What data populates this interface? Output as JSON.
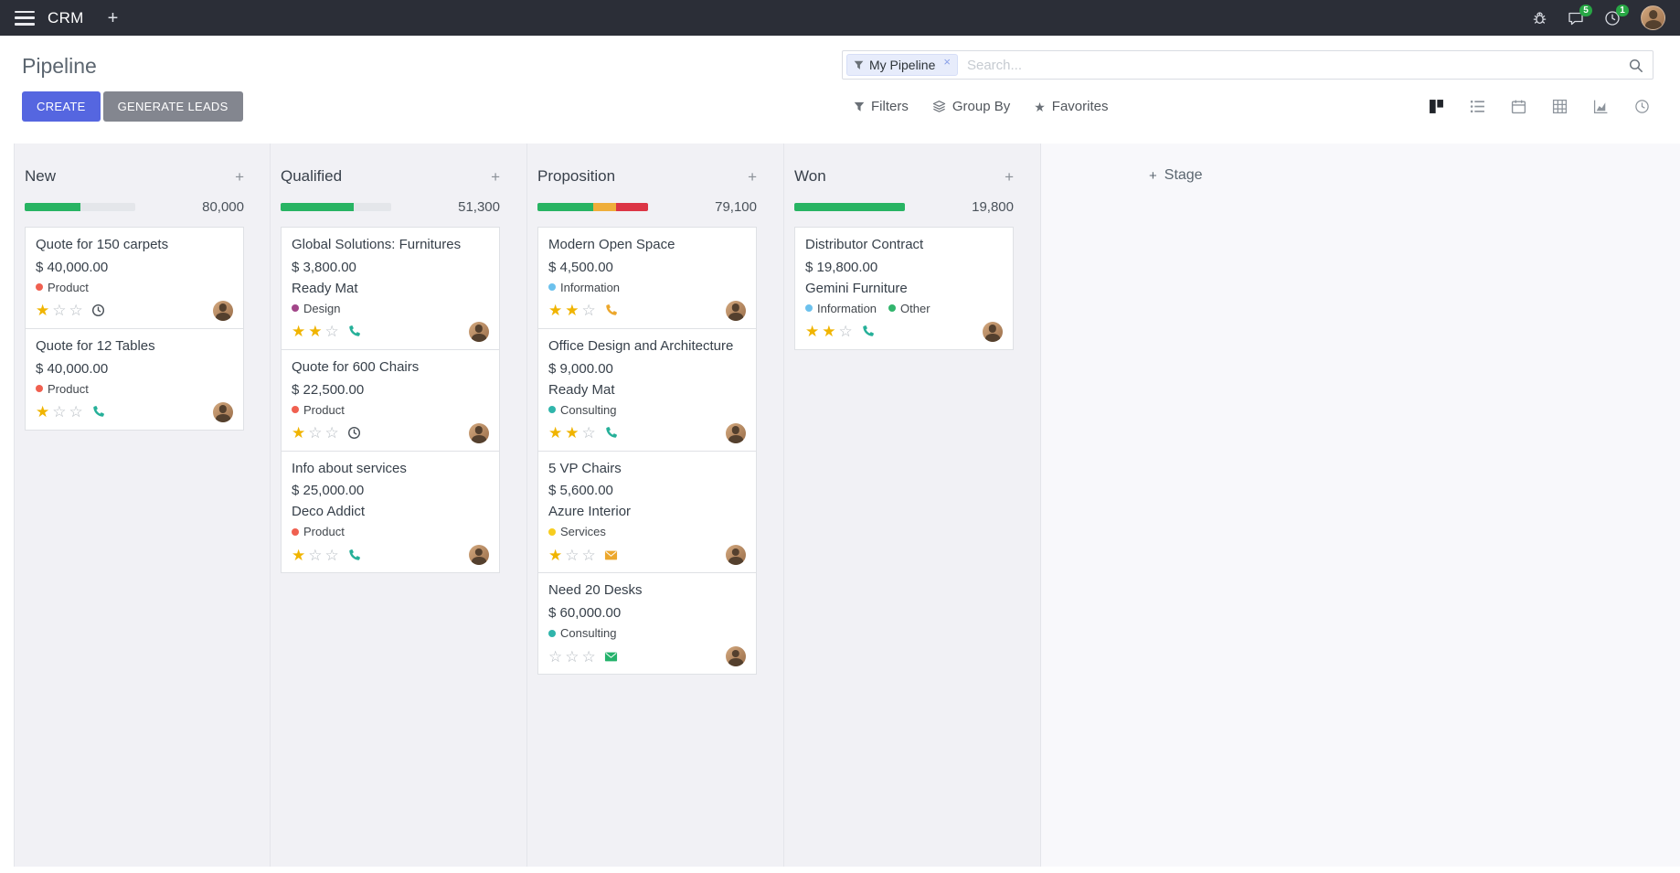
{
  "icons": {
    "add": "+",
    "close": "×",
    "star_filled": "★",
    "star_empty": "☆",
    "favorite": "★"
  },
  "navbar": {
    "app_name": "CRM",
    "messages_badge": "5",
    "activities_badge": "1"
  },
  "control_panel": {
    "title": "Pipeline",
    "search": {
      "facet": "My Pipeline",
      "placeholder": "Search...",
      "remove": "×"
    },
    "buttons": {
      "create": "CREATE",
      "generate_leads": "GENERATE LEADS"
    },
    "menus": {
      "filters": "Filters",
      "group_by": "Group By",
      "favorites": "Favorites"
    },
    "view_switcher": [
      "kanban",
      "list",
      "calendar",
      "pivot",
      "graph",
      "activity"
    ]
  },
  "board": {
    "add_stage": "Stage",
    "columns": [
      {
        "name": "New",
        "amount": "80,000",
        "progress": [
          {
            "color": "#28b463",
            "pct": 50
          }
        ],
        "cards": [
          {
            "title": "Quote for 150 carpets",
            "amount": "$ 40,000.00",
            "tags": [
              {
                "label": "Product",
                "color": "#f06050"
              }
            ],
            "stars": 1,
            "activity": {
              "icon": "clock",
              "color": "#495057"
            }
          },
          {
            "title": "Quote for 12 Tables",
            "amount": "$ 40,000.00",
            "tags": [
              {
                "label": "Product",
                "color": "#f06050"
              }
            ],
            "stars": 1,
            "activity": {
              "icon": "phone",
              "color": "#26b099"
            }
          }
        ]
      },
      {
        "name": "Qualified",
        "amount": "51,300",
        "progress": [
          {
            "color": "#28b463",
            "pct": 66
          }
        ],
        "cards": [
          {
            "title": "Global Solutions: Furnitures",
            "amount": "$ 3,800.00",
            "partner": "Ready Mat",
            "tags": [
              {
                "label": "Design",
                "color": "#a24689"
              }
            ],
            "stars": 2,
            "activity": {
              "icon": "phone",
              "color": "#26b099"
            }
          },
          {
            "title": "Quote for 600 Chairs",
            "amount": "$ 22,500.00",
            "tags": [
              {
                "label": "Product",
                "color": "#f06050"
              }
            ],
            "stars": 1,
            "activity": {
              "icon": "clock",
              "color": "#495057"
            }
          },
          {
            "title": "Info about services",
            "amount": "$ 25,000.00",
            "partner": "Deco Addict",
            "tags": [
              {
                "label": "Product",
                "color": "#f06050"
              }
            ],
            "stars": 1,
            "activity": {
              "icon": "phone",
              "color": "#26b099"
            }
          }
        ]
      },
      {
        "name": "Proposition",
        "amount": "79,100",
        "progress": [
          {
            "color": "#28b463",
            "pct": 50
          },
          {
            "color": "#efae3a",
            "pct": 21
          },
          {
            "color": "#dc3545",
            "pct": 29
          }
        ],
        "cards": [
          {
            "title": "Modern Open Space",
            "amount": "$ 4,500.00",
            "tags": [
              {
                "label": "Information",
                "color": "#6cc1ed"
              }
            ],
            "stars": 2,
            "activity": {
              "icon": "phone",
              "color": "#eca72c"
            }
          },
          {
            "title": "Office Design and Architecture",
            "amount": "$ 9,000.00",
            "partner": "Ready Mat",
            "tags": [
              {
                "label": "Consulting",
                "color": "#30b5ab"
              }
            ],
            "stars": 2,
            "activity": {
              "icon": "phone",
              "color": "#26b099"
            }
          },
          {
            "title": "5 VP Chairs",
            "amount": "$ 5,600.00",
            "partner": "Azure Interior",
            "tags": [
              {
                "label": "Services",
                "color": "#f7cd1f"
              }
            ],
            "stars": 1,
            "activity": {
              "icon": "envelope",
              "color": "#eca72c"
            }
          },
          {
            "title": "Need 20 Desks",
            "amount": "$ 60,000.00",
            "tags": [
              {
                "label": "Consulting",
                "color": "#30b5ab"
              }
            ],
            "stars": 0,
            "activity": {
              "icon": "envelope",
              "color": "#24b26b"
            }
          }
        ]
      },
      {
        "name": "Won",
        "amount": "19,800",
        "progress": [
          {
            "color": "#28b463",
            "pct": 100
          }
        ],
        "cards": [
          {
            "title": "Distributor Contract",
            "amount": "$ 19,800.00",
            "partner": "Gemini Furniture",
            "tags": [
              {
                "label": "Information",
                "color": "#6cc1ed"
              },
              {
                "label": "Other",
                "color": "#31b56d"
              }
            ],
            "stars": 2,
            "activity": {
              "icon": "phone",
              "color": "#26b099"
            }
          }
        ]
      }
    ]
  }
}
